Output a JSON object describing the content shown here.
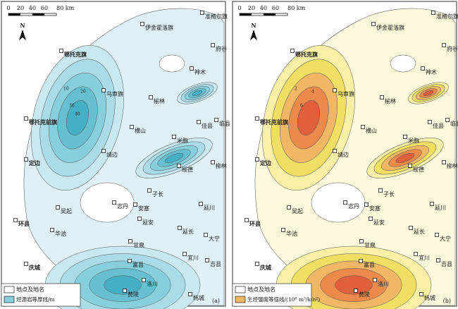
{
  "scale": {
    "ticks": [
      "0",
      "20",
      "40",
      "60",
      "80 km"
    ]
  },
  "north": "N",
  "places": [
    "伊金霍洛旗",
    "准格尔旗",
    "府谷",
    "鄂托克旗",
    "神木",
    "乌审旗",
    "榆林",
    "鄂托克前旗",
    "佳县",
    "临县",
    "横山",
    "米脂",
    "靖边",
    "定边",
    "绥德",
    "柳林",
    "子长",
    "志丹",
    "安塞",
    "吴起",
    "延川",
    "延安",
    "环县",
    "延长",
    "华池",
    "大宁",
    "甘泉",
    "宜川",
    "庆城",
    "富县",
    "吉县",
    "洛川",
    "黄陵",
    "韩城"
  ],
  "panels": [
    {
      "label": "(a)",
      "legend": [
        "地点及地名",
        "烃源岩等厚线/m"
      ],
      "contour_labels": [
        "10",
        "20",
        "30",
        "40"
      ]
    },
    {
      "label": "(b)",
      "legend": [
        "地点及地名",
        "生烃强度等值线/(10⁸ m³/km²)"
      ],
      "contour_labels": [
        "2",
        "4",
        "6"
      ]
    }
  ]
}
